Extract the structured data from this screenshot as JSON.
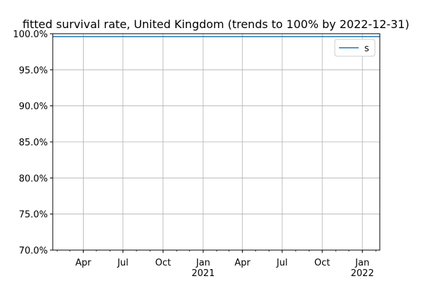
{
  "chart_data": {
    "type": "line",
    "title": "fitted survival rate, United Kingdom (trends to 100% by 2022-12-31)",
    "xlabel": "",
    "ylabel": "",
    "xlim": [
      "2020-01-22",
      "2022-02-10"
    ],
    "ylim": [
      70.0,
      100.0
    ],
    "y_ticks": [
      "70.0%",
      "75.0%",
      "80.0%",
      "85.0%",
      "90.0%",
      "95.0%",
      "100.0%"
    ],
    "x_ticks": [
      {
        "date": "2020-04-01",
        "label": "Apr",
        "year": ""
      },
      {
        "date": "2020-07-01",
        "label": "Jul",
        "year": ""
      },
      {
        "date": "2020-10-01",
        "label": "Oct",
        "year": ""
      },
      {
        "date": "2021-01-01",
        "label": "Jan",
        "year": "2021"
      },
      {
        "date": "2021-04-01",
        "label": "Apr",
        "year": ""
      },
      {
        "date": "2021-07-01",
        "label": "Jul",
        "year": ""
      },
      {
        "date": "2021-10-01",
        "label": "Oct",
        "year": ""
      },
      {
        "date": "2022-01-01",
        "label": "Jan",
        "year": "2022"
      }
    ],
    "grid": true,
    "legend_position": "top-right",
    "series": [
      {
        "name": "s",
        "color": "#1f77b4",
        "x": [
          "2020-01-22",
          "2022-02-10"
        ],
        "y": [
          99.6,
          99.6
        ]
      }
    ]
  }
}
